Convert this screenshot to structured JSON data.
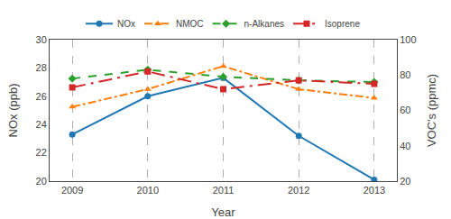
{
  "chart_data": {
    "type": "line",
    "x": [
      2009,
      2010,
      2011,
      2012,
      2013
    ],
    "xlabel": "Year",
    "ylabel": "NOx (ppb)",
    "y2label": "VOC's (ppmc)",
    "xlim": [
      2008.7,
      2013.3
    ],
    "xticks": [
      2009,
      2010,
      2011,
      2012,
      2013
    ],
    "ylim": [
      20,
      30
    ],
    "yticks": [
      20,
      22,
      24,
      26,
      28,
      30
    ],
    "y2lim": [
      20,
      100
    ],
    "y2ticks": [
      20,
      40,
      60,
      80,
      100
    ],
    "grid": "x",
    "legend": "top",
    "series": [
      {
        "name": "NOx",
        "values": [
          23.3,
          26.0,
          27.3,
          23.2,
          20.1
        ],
        "marker": "circle",
        "line_style": "solid"
      },
      {
        "name": "NMOC",
        "values": [
          62,
          72,
          85,
          72,
          67
        ],
        "axis": "y2",
        "marker": "triangle-up",
        "line_style": "dashdot"
      },
      {
        "name": "n-Alkanes",
        "values": [
          78,
          83,
          79,
          77,
          76
        ],
        "axis": "y2",
        "marker": "diamond",
        "line_style": "dash"
      },
      {
        "name": "Isoprene",
        "values": [
          73,
          82,
          72,
          77,
          75
        ],
        "axis": "y2",
        "marker": "square",
        "line_style": "longdashdot"
      }
    ]
  }
}
